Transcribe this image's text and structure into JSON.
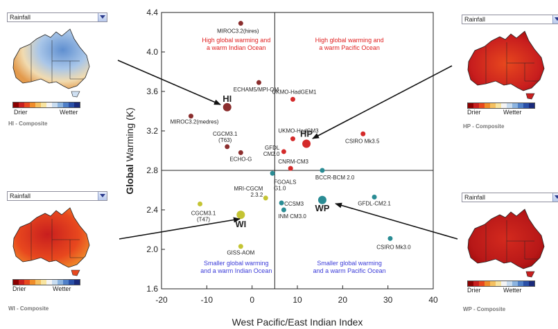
{
  "panels": {
    "hi": {
      "dropdown": "Rainfall",
      "drier": "Drier",
      "wetter": "Wetter",
      "caption": "HI - Composite"
    },
    "hp": {
      "dropdown": "Rainfall",
      "drier": "Drier",
      "wetter": "Wetter",
      "caption": "HP - Composite"
    },
    "wi": {
      "dropdown": "Rainfall",
      "drier": "Drier",
      "wetter": "Wetter",
      "caption": "WI - Composite"
    },
    "wp": {
      "dropdown": "Rainfall",
      "drier": "Drier",
      "wetter": "Wetter",
      "caption": "WP - Composite"
    }
  },
  "colors": {
    "red_group": "#d42a2a",
    "hi_group": "#8b2e2e",
    "wi_group": "#c4c433",
    "wp_group": "#2a8c94",
    "quadrant_high": "#e02020",
    "quadrant_low": "#3a3ad8",
    "legend_scale": [
      "#8b0000",
      "#c81e1e",
      "#e8481e",
      "#f08c2a",
      "#f5c060",
      "#f8e4a0",
      "#f4f4f4",
      "#c8dcf0",
      "#8cb4e0",
      "#5080c8",
      "#2a50a8",
      "#1a2a7c"
    ]
  },
  "chart_data": {
    "type": "scatter",
    "xlabel": "West Pacific/East Indian Index",
    "ylabel_bold": "Global",
    "ylabel_rest": " Warming (K)",
    "xlim": [
      -20,
      40
    ],
    "ylim": [
      1.6,
      4.4
    ],
    "xticks": [
      -20,
      -10,
      0,
      10,
      20,
      30,
      40
    ],
    "yticks": [
      "1.6",
      "2.0",
      "2.4",
      "2.8",
      "3.2",
      "3.6",
      "4.0",
      "4.4"
    ],
    "divider_x": 5,
    "divider_y": 2.8,
    "quadrant_labels": [
      {
        "text": [
          "High global warming and",
          "a warm Indian Ocean"
        ],
        "x": -3.5,
        "y": 4.1,
        "group": "high"
      },
      {
        "text": [
          "High global warming and",
          "a warm Pacific Ocean"
        ],
        "x": 21.5,
        "y": 4.1,
        "group": "high"
      },
      {
        "text": [
          "Smaller global warming",
          "and a warm Indian Ocean"
        ],
        "x": -3.5,
        "y": 1.84,
        "group": "low"
      },
      {
        "text": [
          "Smaller global warming",
          "and a warm Pacific Ocean"
        ],
        "x": 21.5,
        "y": 1.84,
        "group": "low"
      }
    ],
    "points": [
      {
        "label": "MIROC3.2(hires)",
        "x": -2.5,
        "y": 4.29,
        "group": "hi",
        "size": 3.5
      },
      {
        "label": "ECHAM5/MPI-OM",
        "x": 1.5,
        "y": 3.69,
        "group": "hi",
        "size": 3.5
      },
      {
        "label": "MIROC3.2(medres)",
        "x": -13.5,
        "y": 3.35,
        "group": "hi",
        "size": 3.5
      },
      {
        "label": "CGCM3.1 (T63)",
        "x": -5.5,
        "y": 3.04,
        "group": "hi",
        "size": 3.5
      },
      {
        "label": "ECHO-G",
        "x": -2.5,
        "y": 2.98,
        "group": "hi",
        "size": 3.5
      },
      {
        "label": "UKMO-HadGEM1",
        "x": 9,
        "y": 3.52,
        "group": "hp",
        "size": 3.5
      },
      {
        "label": "UKMO-HadCM3",
        "x": 9,
        "y": 3.12,
        "group": "hp",
        "size": 3.5
      },
      {
        "label": "GFDL-CM2.0",
        "x": 7,
        "y": 2.99,
        "group": "hp",
        "size": 3.5
      },
      {
        "label": "CSIRO Mk3.5",
        "x": 24.5,
        "y": 3.17,
        "group": "hp",
        "size": 3.5
      },
      {
        "label": "CNRM-CM3",
        "x": 8.5,
        "y": 2.82,
        "group": "hp",
        "size": 3.5
      },
      {
        "label": "FGOALS-G1.0",
        "x": 4.5,
        "y": 2.77,
        "group": "wp",
        "size": 3.5
      },
      {
        "label": "BCCR-BCM 2.0",
        "x": 15.5,
        "y": 2.8,
        "group": "wp",
        "size": 3.5
      },
      {
        "label": "MRI-CGCM 2.3.2",
        "x": 3,
        "y": 2.52,
        "group": "wi",
        "size": 3.5
      },
      {
        "label": "CGCM3.1 (T47)",
        "x": -11.5,
        "y": 2.46,
        "group": "wi",
        "size": 3.5
      },
      {
        "label": "GISS-AOM",
        "x": -2.5,
        "y": 2.03,
        "group": "wi",
        "size": 3.5
      },
      {
        "label": "CCSM3",
        "x": 6.5,
        "y": 2.47,
        "group": "wp",
        "size": 3.5
      },
      {
        "label": "INM CM3.0",
        "x": 7,
        "y": 2.4,
        "group": "wp",
        "size": 3.5
      },
      {
        "label": "GFDL-CM2.1",
        "x": 27,
        "y": 2.53,
        "group": "wp",
        "size": 3.5
      },
      {
        "label": "CSIRO Mk3.0",
        "x": 30.5,
        "y": 2.11,
        "group": "wp",
        "size": 3.5
      },
      {
        "label": "HI",
        "x": -5.5,
        "y": 3.44,
        "group": "hi",
        "size": 6,
        "composite": true
      },
      {
        "label": "HP",
        "x": 12,
        "y": 3.07,
        "group": "hp",
        "size": 6,
        "composite": true
      },
      {
        "label": "WI",
        "x": -2.5,
        "y": 2.35,
        "group": "wi",
        "size": 6,
        "composite": true
      },
      {
        "label": "WP",
        "x": 15.5,
        "y": 2.5,
        "group": "wp",
        "size": 6,
        "composite": true
      }
    ]
  }
}
